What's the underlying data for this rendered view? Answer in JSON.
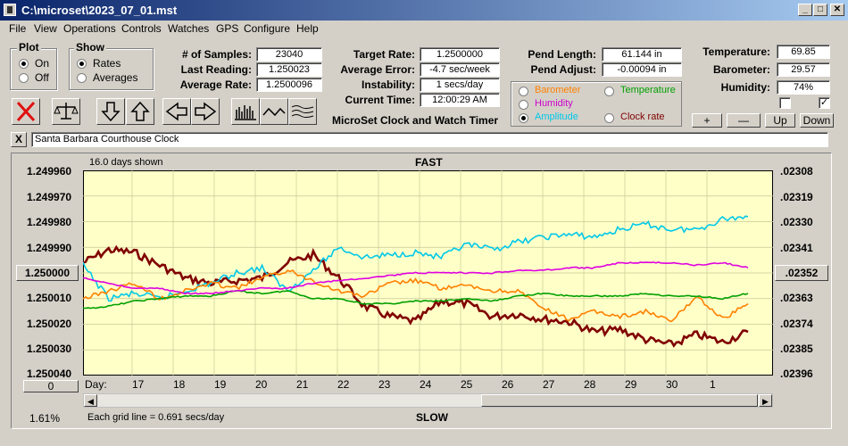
{
  "window": {
    "title": "C:\\microset\\2023_07_01.mst",
    "min": "_",
    "max": "□",
    "close": "✕"
  },
  "menu": [
    "File",
    "View",
    "Operations",
    "Controls",
    "Watches",
    "GPS",
    "Configure",
    "Help"
  ],
  "plot_group": {
    "title": "Plot",
    "options": [
      "On",
      "Off"
    ],
    "selected": "On"
  },
  "show_group": {
    "title": "Show",
    "options": [
      "Rates",
      "Averages"
    ],
    "selected": "Rates"
  },
  "stats": {
    "samples_label": "# of Samples:",
    "samples": "23040",
    "last_reading_label": "Last Reading:",
    "last_reading": "1.250023",
    "avg_rate_label": "Average Rate:",
    "avg_rate": "1.2500096",
    "target_rate_label": "Target Rate:",
    "target_rate": "1.2500000",
    "avg_error_label": "Average Error:",
    "avg_error": "-4.7 sec/week",
    "instability_label": "Instability:",
    "instability": "1 secs/day",
    "current_time_label": "Current Time:",
    "current_time": "12:00:29 AM",
    "pend_length_label": "Pend Length:",
    "pend_length": "61.144 in",
    "pend_adjust_label": "Pend Adjust:",
    "pend_adjust": "-0.00094 in",
    "temperature_label": "Temperature:",
    "temperature": "69.85",
    "barometer_label": "Barometer:",
    "barometer": "29.57",
    "humidity_label": "Humidity:",
    "humidity": "74%"
  },
  "app_caption": "MicroSet Clock and Watch Timer",
  "series_options": [
    {
      "label": "Barometer",
      "color": "#ff8000"
    },
    {
      "label": "Temperature",
      "color": "#00a000"
    },
    {
      "label": "Humidity",
      "color": "#cc00cc"
    },
    {
      "label": "Amplitude",
      "color": "#00c8e8",
      "selected": true
    },
    {
      "label": "Clock rate",
      "color": "#800000"
    }
  ],
  "adjust_buttons": {
    "plus": "+",
    "minus": "—",
    "up": "Up",
    "down": "Down"
  },
  "check_marks": {
    "first": "",
    "second": "✓"
  },
  "clear_button": "X",
  "clock_name": "Santa Barbara Courthouse Clock",
  "plot_header": {
    "days_shown": "16.0 days shown",
    "fast": "FAST",
    "slow": "SLOW",
    "grid_note": "Each grid line = 0.691 secs/day",
    "percent": "1.61%",
    "day_label": "Day:"
  },
  "left_button": "1.250000",
  "right_button": ".02352",
  "zero_button": "0",
  "icons": [
    "close-red-x-icon",
    "balance-scale-icon",
    "arrow-down-icon",
    "arrow-up-icon",
    "arrow-left-icon",
    "arrow-right-icon",
    "bar-graph-icon",
    "wave-icon",
    "multi-wave-icon"
  ],
  "chart_data": {
    "type": "line",
    "x_axis_ticks": [
      "17",
      "18",
      "19",
      "20",
      "21",
      "22",
      "23",
      "24",
      "25",
      "26",
      "27",
      "28",
      "29",
      "30",
      "1"
    ],
    "y_left_ticks": [
      "1.249960",
      "1.249970",
      "1.249980",
      "1.249990",
      "1.250000",
      "1.250010",
      "1.250020",
      "1.250030",
      "1.250040"
    ],
    "y_right_ticks": [
      ".02308",
      ".02319",
      ".02330",
      ".02341",
      ".02352",
      ".02363",
      ".02374",
      ".02385",
      ".02396"
    ],
    "ylim_left": [
      1.24996,
      1.25004
    ],
    "series": [
      {
        "color": "#800000",
        "values": [
          1.249996,
          1.249991,
          1.249992,
          1.249997,
          1.250002,
          1.250004,
          1.250003,
          1.250002,
          1.249996,
          1.249993,
          1.250002,
          1.250013,
          1.250017,
          1.250019,
          1.250011,
          1.250012,
          1.250017,
          1.250016,
          1.250018,
          1.250019,
          1.250023,
          1.250022,
          1.250026,
          1.250028,
          1.250024,
          1.250027,
          1.250023
        ]
      },
      {
        "color": "#00c8e8",
        "values": [
          1.249997,
          1.25001,
          1.250008,
          1.25001,
          1.250007,
          1.250004,
          1.25,
          1.249998,
          1.250007,
          1.249999,
          1.24999,
          1.249994,
          1.249993,
          1.249992,
          1.249994,
          1.249989,
          1.249991,
          1.249988,
          1.249986,
          1.249985,
          1.249986,
          1.249983,
          1.249981,
          1.249983,
          1.249983,
          1.249979,
          1.249978
        ]
      },
      {
        "color": "#ff8000",
        "values": [
          1.25001,
          1.250007,
          1.250004,
          1.25001,
          1.250007,
          1.250004,
          1.250006,
          1.250002,
          1.249999,
          1.250003,
          1.250007,
          1.250009,
          1.250004,
          1.250003,
          1.250006,
          1.250005,
          1.250007,
          1.250007,
          1.250014,
          1.250018,
          1.250015,
          1.250017,
          1.250015,
          1.250019,
          1.250009,
          1.250018,
          1.250012
        ]
      },
      {
        "color": "#00a000",
        "values": [
          1.250014,
          1.250013,
          1.250011,
          1.25001,
          1.250009,
          1.250009,
          1.250007,
          1.250008,
          1.250007,
          1.25001,
          1.25001,
          1.250012,
          1.250012,
          1.250011,
          1.250011,
          1.25001,
          1.250011,
          1.250009,
          1.250008,
          1.250009,
          1.250009,
          1.250009,
          1.250008,
          1.250009,
          1.250009,
          1.25001,
          1.250008
        ]
      },
      {
        "color": "#e000e0",
        "values": [
          1.250002,
          1.250004,
          1.250006,
          1.250006,
          1.250008,
          1.250008,
          1.250007,
          1.250006,
          1.250006,
          1.250004,
          1.250003,
          1.250002,
          1.250001,
          1.25,
          1.25,
          1.25,
          1.25,
          1.249999,
          1.249999,
          1.249998,
          1.249998,
          1.249996,
          1.249996,
          1.249996,
          1.249997,
          1.249996,
          1.249998
        ]
      }
    ]
  }
}
